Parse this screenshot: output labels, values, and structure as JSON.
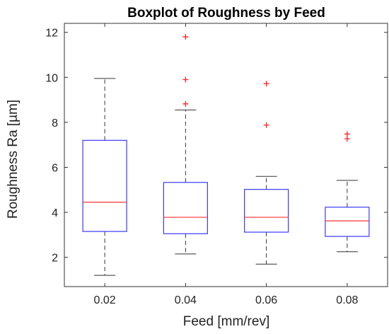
{
  "chart_data": {
    "type": "boxplot",
    "title": "Boxplot of Roughness by Feed",
    "xlabel": "Feed [mm/rev]",
    "ylabel": "Roughness Ra [µm]",
    "ylim": [
      0.7,
      12.4
    ],
    "yticks": [
      2,
      4,
      6,
      8,
      10,
      12
    ],
    "grid": false,
    "categories": [
      "0.02",
      "0.04",
      "0.06",
      "0.08"
    ],
    "boxes": [
      {
        "category": "0.02",
        "whisker_low": 1.2,
        "q1": 3.15,
        "median": 4.45,
        "q3": 7.2,
        "whisker_high": 9.95,
        "outliers": []
      },
      {
        "category": "0.04",
        "whisker_low": 2.15,
        "q1": 3.05,
        "median": 3.78,
        "q3": 5.33,
        "whisker_high": 8.55,
        "outliers": [
          8.82,
          9.9,
          11.8
        ]
      },
      {
        "category": "0.06",
        "whisker_low": 1.7,
        "q1": 3.12,
        "median": 3.78,
        "q3": 5.02,
        "whisker_high": 5.6,
        "outliers": [
          7.88,
          9.72
        ]
      },
      {
        "category": "0.08",
        "whisker_low": 2.25,
        "q1": 2.93,
        "median": 3.62,
        "q3": 4.23,
        "whisker_high": 5.42,
        "outliers": [
          7.27,
          7.48
        ]
      }
    ],
    "colors": {
      "box": "#3a3aff",
      "median": "#ff3030",
      "outlier": "#ff2020",
      "whisker": "#333333",
      "axis": "#333333"
    }
  }
}
